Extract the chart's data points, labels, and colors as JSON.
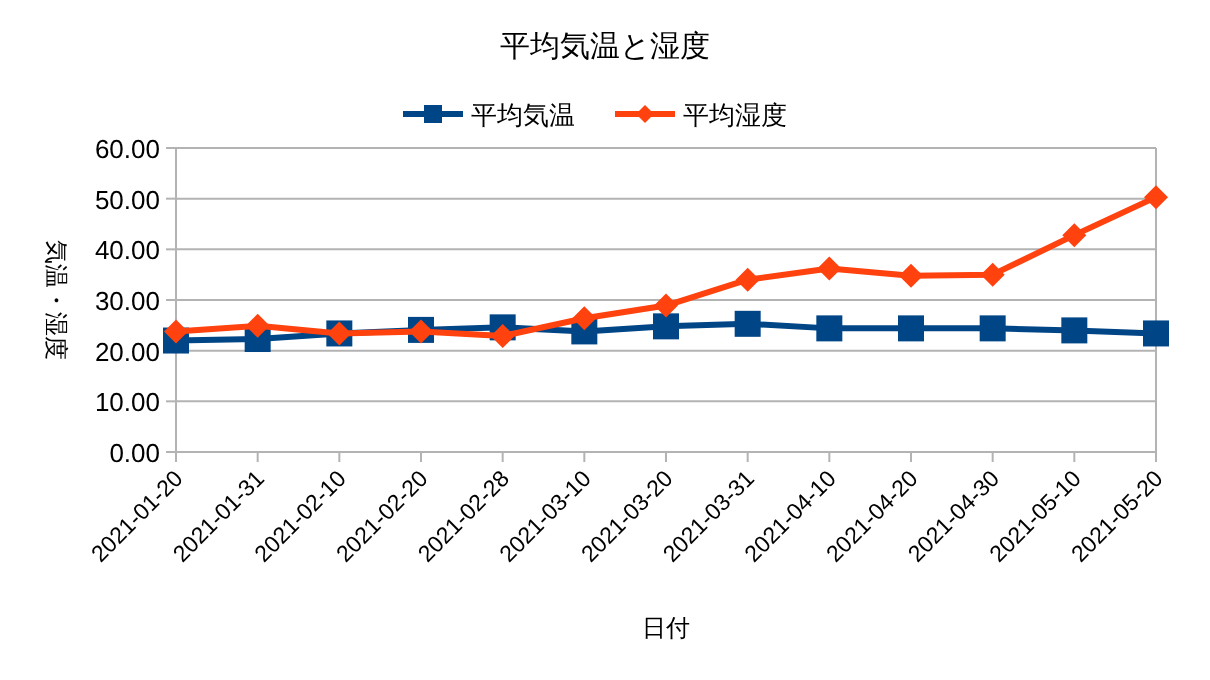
{
  "chart_data": {
    "type": "line",
    "title": "平均気温と湿度",
    "xlabel": "日付",
    "ylabel": "気温・湿度",
    "categories": [
      "2021-01-20",
      "2021-01-31",
      "2021-02-10",
      "2021-02-20",
      "2021-02-28",
      "2021-03-10",
      "2021-03-20",
      "2021-03-31",
      "2021-04-10",
      "2021-04-20",
      "2021-04-30",
      "2021-05-10",
      "2021-05-20"
    ],
    "series": [
      {
        "name": "平均気温",
        "color": "#004586",
        "marker": "square",
        "values": [
          22.0,
          22.3,
          23.4,
          24.1,
          24.6,
          23.8,
          24.8,
          25.3,
          24.4,
          24.4,
          24.4,
          24.0,
          23.4
        ]
      },
      {
        "name": "平均湿度",
        "color": "#ff420e",
        "marker": "diamond",
        "values": [
          23.8,
          24.9,
          23.4,
          23.8,
          22.9,
          26.4,
          28.9,
          34.0,
          36.2,
          34.8,
          35.0,
          42.8,
          50.3
        ]
      }
    ],
    "ylim": [
      0,
      60
    ],
    "yticks": [
      {
        "value": 0,
        "label": "0.00"
      },
      {
        "value": 10,
        "label": "10.00"
      },
      {
        "value": 20,
        "label": "20.00"
      },
      {
        "value": 30,
        "label": "30.00"
      },
      {
        "value": 40,
        "label": "40.00"
      },
      {
        "value": 50,
        "label": "50.00"
      },
      {
        "value": 60,
        "label": "60.00"
      }
    ],
    "grid": "y",
    "legend": "top",
    "line_style": "solid"
  }
}
